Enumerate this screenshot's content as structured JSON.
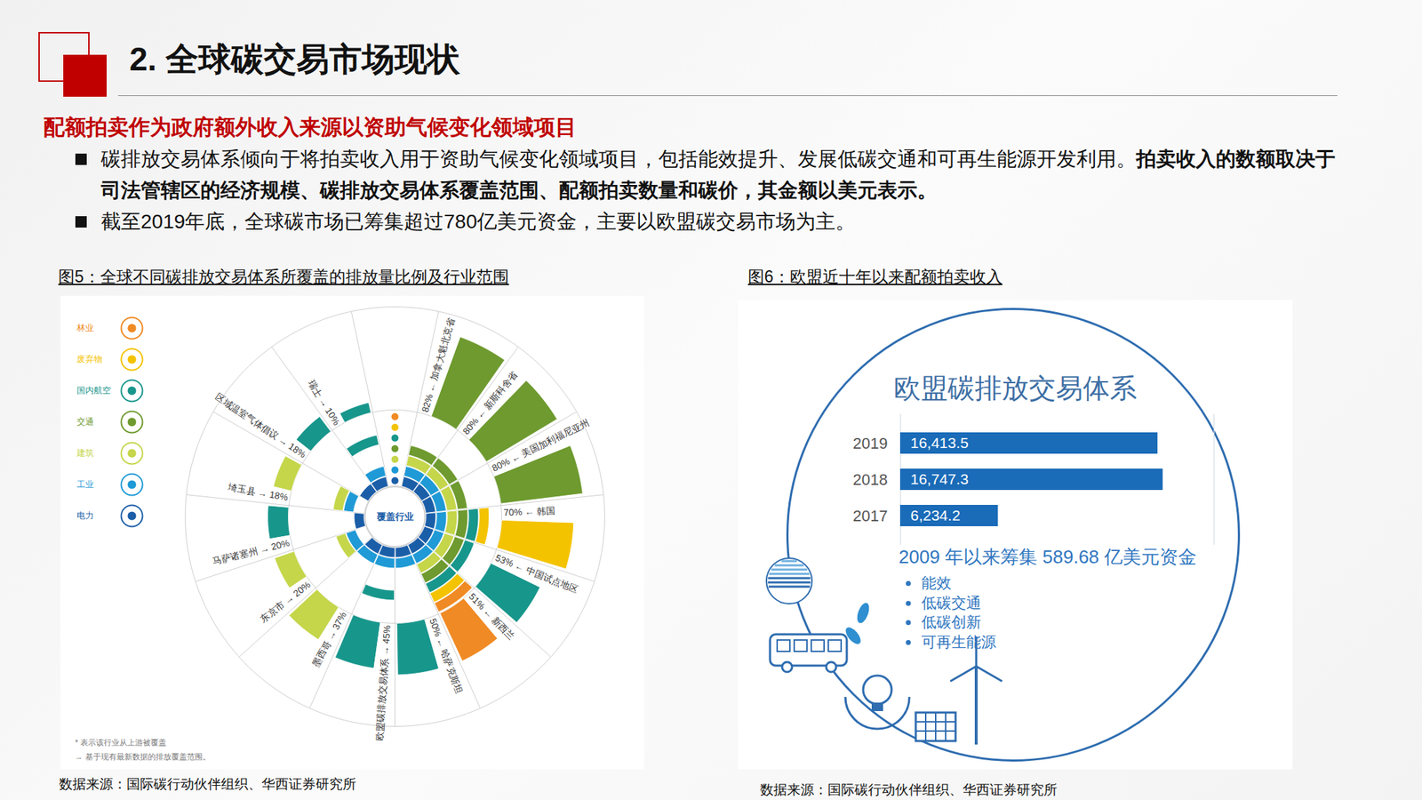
{
  "page": {
    "title": "2. 全球碳交易市场现状",
    "subtitle": "配额拍卖作为政府额外收入来源以资助气候变化领域项目",
    "bullets": [
      {
        "text": "碳排放交易体系倾向于将拍卖收入用于资助气候变化领域项目，包括能效提升、发展低碳交通和可再生能源开发利用。",
        "emphasis": "拍卖收入的数额取决于司法管辖区的经济规模、碳排放交易体系覆盖范围、配额拍卖数量和碳价，其金额以美元表示。"
      },
      {
        "text": "截至2019年底，全球碳市场已筹集超过780亿美元资金，主要以欧盟碳交易市场为主。"
      }
    ],
    "figures": [
      {
        "caption": "图5：全球不同碳排放交易体系所覆盖的排放量比例及行业范围",
        "source": "数据来源：国际碳行动伙伴组织、华西证券研究所"
      },
      {
        "caption": "图6：欧盟近十年以来配额拍卖收入",
        "source": "数据来源：国际碳行动伙伴组织、华西证券研究所"
      }
    ]
  },
  "chart_data": [
    {
      "type": "radial_bar",
      "annotations": {
        "center": "覆盖行业",
        "notes": [
          "* 表示该行业从上游被覆盖",
          "→ 基于现有最新数据的排放覆盖范围。"
        ]
      },
      "categories": [
        "加拿大魁北克省",
        "新斯科舍省",
        "美国加利福尼亚州",
        "韩国",
        "中国试点地区",
        "新西兰",
        "哈萨克斯坦",
        "欧盟碳排放交易体系",
        "墨西哥",
        "东京市",
        "马萨诸塞州",
        "埼玉县",
        "区域温室气体倡议",
        "瑞士"
      ],
      "values": [
        82,
        80,
        80,
        70,
        53,
        51,
        50,
        45,
        37,
        20,
        20,
        18,
        18,
        10
      ],
      "value_labels": [
        "82% ← 加拿大魁北克省",
        "80% ← 新斯科舍省",
        "80% ← 美国加利福尼亚州",
        "70% ← 韩国",
        "53% ← 中国试点地区",
        "51% ← 新西兰",
        "50% ← 哈萨克斯坦",
        "欧盟碳排放交易体系 → 45%",
        "墨西哥 → 37%",
        "东京市 → 20%",
        "马萨诸塞州 → 20%",
        "埼玉县 → 18%",
        "区域温室气体倡议 → 18%",
        "瑞士 → 10%"
      ],
      "data_labels": true,
      "colors": [
        "#6e9a2f",
        "#6e9a2f",
        "#6e9a2f",
        "#f4c300",
        "#17968c",
        "#f08a24",
        "#17968c",
        "#17968c",
        "#c5d64a",
        "#c5d64a",
        "#17968c",
        "#c5d64a",
        "#17968c",
        "#17968c"
      ],
      "series": [
        {
          "name": "林业",
          "color": "#f08a24",
          "values": [
            0,
            0,
            0,
            0,
            0,
            1,
            0,
            0,
            0,
            0,
            0,
            0,
            0,
            0
          ]
        },
        {
          "name": "废弃物",
          "color": "#f4c300",
          "values": [
            0,
            0,
            0,
            1,
            0,
            1,
            0,
            0,
            0,
            0,
            0,
            0,
            0,
            0
          ]
        },
        {
          "name": "国内航空",
          "color": "#17968c",
          "values": [
            0,
            0,
            0,
            1,
            1,
            1,
            0,
            1,
            0,
            0,
            0,
            0,
            0,
            1
          ]
        },
        {
          "name": "交通",
          "color": "#6e9a2f",
          "values": [
            1,
            1,
            1,
            1,
            1,
            1,
            0,
            0,
            0,
            0,
            0,
            0,
            0,
            0
          ]
        },
        {
          "name": "建筑",
          "color": "#c5d64a",
          "values": [
            1,
            1,
            1,
            1,
            1,
            1,
            0,
            0,
            0,
            1,
            0,
            1,
            0,
            0
          ]
        },
        {
          "name": "工业",
          "color": "#1f9ad6",
          "values": [
            1,
            1,
            1,
            1,
            1,
            1,
            1,
            1,
            1,
            1,
            0,
            1,
            0,
            1
          ]
        },
        {
          "name": "电力",
          "color": "#1b5ea8",
          "values": [
            1,
            1,
            1,
            1,
            1,
            1,
            1,
            1,
            1,
            0,
            1,
            0,
            1,
            1
          ]
        }
      ],
      "ylim": [
        0,
        100
      ],
      "tick_labels": false,
      "legend": "left"
    },
    {
      "type": "bar",
      "orientation": "horizontal",
      "title": "欧盟碳排放交易体系",
      "categories": [
        "2019",
        "2018",
        "2017"
      ],
      "values": [
        16413.5,
        16747.3,
        6234.2
      ],
      "value_labels": [
        "16,413.5",
        "16,747.3",
        "6,234.2"
      ],
      "data_labels": true,
      "color": "#1a6bb8",
      "xlim": [
        0,
        20000
      ],
      "tick_labels": "y",
      "annotations": {
        "note": "2009 年以来筹集 589.68 亿美元资金",
        "items": [
          "能效",
          "低碳交通",
          "低碳创新",
          "可再生能源"
        ]
      }
    }
  ]
}
